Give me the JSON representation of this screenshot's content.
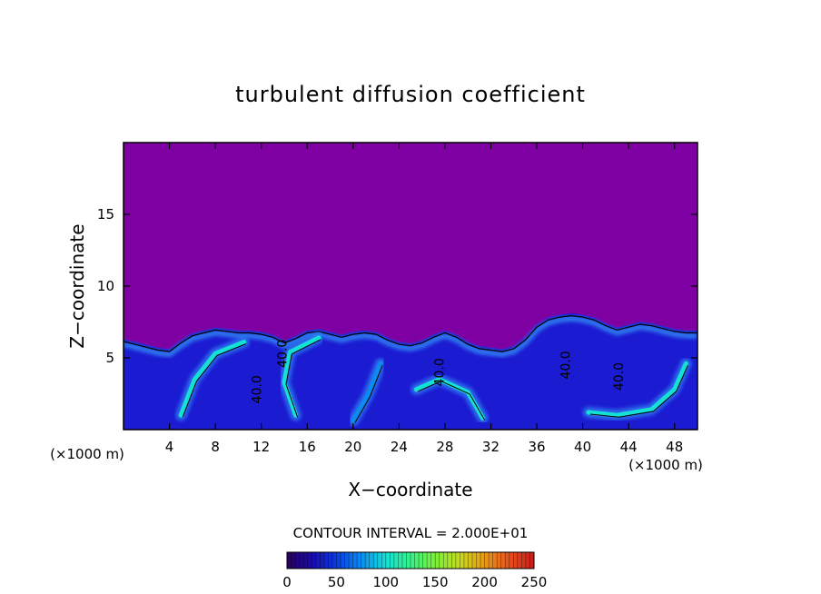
{
  "chart_data": {
    "type": "heatmap",
    "title": "turbulent diffusion coefficient",
    "xlabel": "X−coordinate",
    "ylabel": "Z−coordinate",
    "x_unit": "(×1000 m)",
    "y_unit": "(×1000 m)",
    "xlim": [
      0,
      50
    ],
    "ylim": [
      0,
      20
    ],
    "x_ticks": [
      4,
      8,
      12,
      16,
      20,
      24,
      28,
      32,
      36,
      40,
      44,
      48
    ],
    "y_ticks": [
      5,
      10,
      15
    ],
    "contour_interval_label": "CONTOUR INTERVAL = 2.000E+01",
    "contour_labels": [
      {
        "text": "40.0",
        "x": 14.2,
        "z": 5.3
      },
      {
        "text": "40.0",
        "x": 27.9,
        "z": 4.0
      },
      {
        "text": "40.0",
        "x": 38.9,
        "z": 4.5
      },
      {
        "text": "40.0",
        "x": 43.5,
        "z": 3.7
      },
      {
        "text": "40.0",
        "x": 12.0,
        "z": 2.8
      }
    ],
    "background_value": 0,
    "boundary_layer_top_z": [
      [
        0,
        6.3
      ],
      [
        1,
        6.1
      ],
      [
        2,
        5.9
      ],
      [
        3,
        5.7
      ],
      [
        4,
        5.6
      ],
      [
        5,
        6.2
      ],
      [
        6,
        6.7
      ],
      [
        7,
        6.9
      ],
      [
        8,
        7.1
      ],
      [
        9,
        7.0
      ],
      [
        10,
        6.9
      ],
      [
        11,
        6.9
      ],
      [
        12,
        6.8
      ],
      [
        13,
        6.6
      ],
      [
        14,
        6.2
      ],
      [
        15,
        6.5
      ],
      [
        16,
        6.9
      ],
      [
        17,
        7.0
      ],
      [
        18,
        6.8
      ],
      [
        19,
        6.6
      ],
      [
        20,
        6.8
      ],
      [
        21,
        6.9
      ],
      [
        22,
        6.8
      ],
      [
        23,
        6.4
      ],
      [
        24,
        6.1
      ],
      [
        25,
        6.0
      ],
      [
        26,
        6.2
      ],
      [
        27,
        6.6
      ],
      [
        28,
        6.9
      ],
      [
        29,
        6.6
      ],
      [
        30,
        6.1
      ],
      [
        31,
        5.8
      ],
      [
        32,
        5.7
      ],
      [
        33,
        5.6
      ],
      [
        34,
        5.8
      ],
      [
        35,
        6.4
      ],
      [
        36,
        7.3
      ],
      [
        37,
        7.8
      ],
      [
        38,
        8.0
      ],
      [
        39,
        8.1
      ],
      [
        40,
        8.0
      ],
      [
        41,
        7.8
      ],
      [
        42,
        7.4
      ],
      [
        43,
        7.1
      ],
      [
        44,
        7.3
      ],
      [
        45,
        7.5
      ],
      [
        46,
        7.4
      ],
      [
        47,
        7.2
      ],
      [
        48,
        7.0
      ],
      [
        49,
        6.9
      ],
      [
        50,
        6.9
      ]
    ],
    "high_value_streaks": [
      {
        "approx_value": 110,
        "path": [
          [
            5.0,
            1.0
          ],
          [
            6.2,
            3.5
          ],
          [
            8.0,
            5.3
          ],
          [
            10.5,
            6.1
          ]
        ]
      },
      {
        "approx_value": 90,
        "path": [
          [
            15.0,
            1.0
          ],
          [
            14.0,
            3.3
          ],
          [
            14.5,
            5.4
          ],
          [
            17.0,
            6.4
          ]
        ]
      },
      {
        "approx_value": 90,
        "path": [
          [
            25.5,
            2.8
          ],
          [
            27.5,
            3.5
          ],
          [
            30.0,
            2.6
          ],
          [
            31.3,
            0.8
          ]
        ]
      },
      {
        "approx_value": 80,
        "path": [
          [
            20.0,
            0.6
          ],
          [
            21.3,
            2.4
          ],
          [
            22.4,
            4.6
          ]
        ]
      },
      {
        "approx_value": 110,
        "path": [
          [
            40.5,
            1.2
          ],
          [
            43.0,
            1.0
          ],
          [
            46.0,
            1.4
          ],
          [
            48.0,
            2.8
          ],
          [
            49.0,
            4.6
          ]
        ]
      }
    ]
  },
  "colorbar": {
    "ticks": [
      "0",
      "50",
      "100",
      "150",
      "200",
      "250"
    ],
    "min": 0,
    "max": 250,
    "colors": [
      "#2a0060",
      "#1a0aa8",
      "#0b3be0",
      "#0a8cf0",
      "#14e0d6",
      "#38f088",
      "#7af03a",
      "#c8d820",
      "#e89a18",
      "#e8501a",
      "#c81c1c"
    ]
  },
  "colors": {
    "background_field": "#7e00a3",
    "turbulent_low": "#1b1bd2",
    "turbulent_mid": "#2f7bf0",
    "turbulent_high": "#33e6cf"
  }
}
